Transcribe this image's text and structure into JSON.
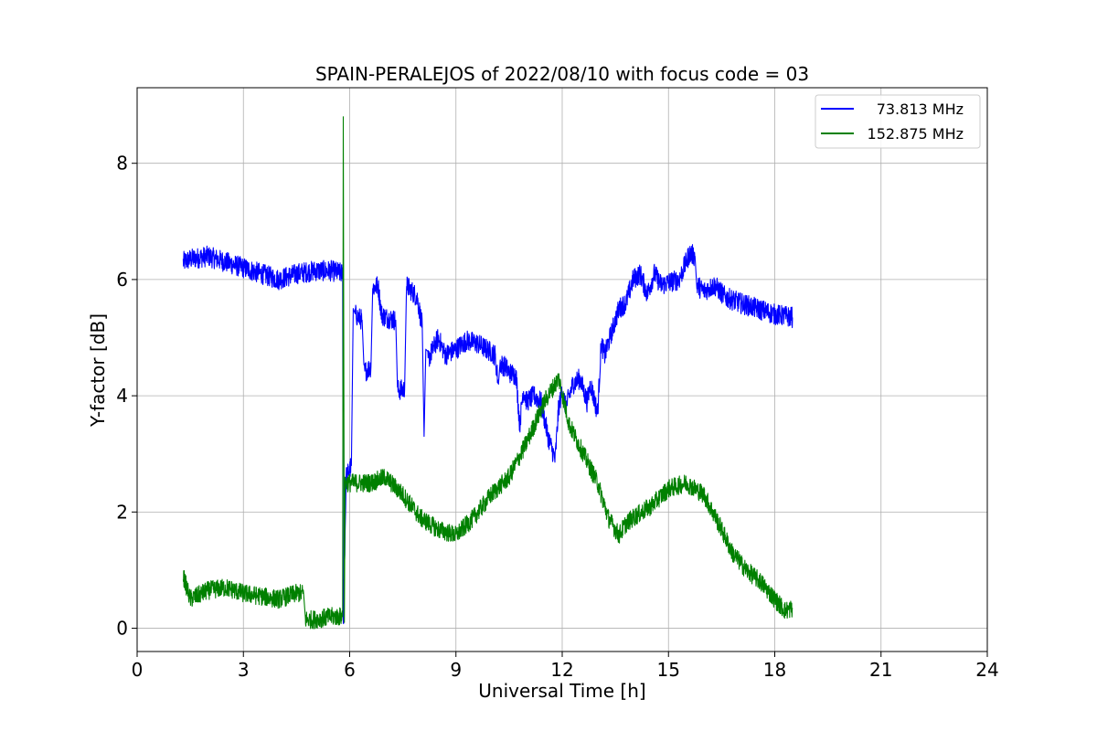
{
  "chart_data": {
    "type": "line",
    "title": "SPAIN-PERALEJOS of 2022/08/10 with focus code = 03",
    "xlabel": "Universal Time [h]",
    "ylabel": "Y-factor [dB]",
    "xlim": [
      0,
      24
    ],
    "ylim": [
      -0.4,
      9.3
    ],
    "xticks": [
      0,
      3,
      6,
      9,
      12,
      15,
      18,
      21,
      24
    ],
    "yticks": [
      0,
      2,
      4,
      6,
      8
    ],
    "grid": true,
    "legend_position": "top-right",
    "series": [
      {
        "name": "73.813 MHz",
        "color": "#0000ff",
        "noise": 0.18,
        "x": [
          1.3,
          1.5,
          2.0,
          2.5,
          3.0,
          3.5,
          4.0,
          4.5,
          5.0,
          5.5,
          5.8,
          5.82,
          5.9,
          6.05,
          6.1,
          6.15,
          6.35,
          6.4,
          6.6,
          6.65,
          6.8,
          6.9,
          7.0,
          7.3,
          7.35,
          7.55,
          7.6,
          7.9,
          8.05,
          8.1,
          8.15,
          8.2,
          8.5,
          8.7,
          9.0,
          9.3,
          9.6,
          10.0,
          10.1,
          10.2,
          10.25,
          10.4,
          10.5,
          10.7,
          10.8,
          10.9,
          11.0,
          11.2,
          11.4,
          11.6,
          11.8,
          11.9,
          12.0,
          12.1,
          12.3,
          12.5,
          12.7,
          12.8,
          13.0,
          13.1,
          13.2,
          13.4,
          13.6,
          13.8,
          14.0,
          14.2,
          14.4,
          14.6,
          14.8,
          15.0,
          15.3,
          15.5,
          15.6,
          15.75,
          15.8,
          16.0,
          16.3,
          16.6,
          17.0,
          17.5,
          18.0,
          18.5
        ],
        "y": [
          6.3,
          6.35,
          6.4,
          6.3,
          6.2,
          6.1,
          6.0,
          6.1,
          6.15,
          6.15,
          6.1,
          0.0,
          2.6,
          2.8,
          5.5,
          5.4,
          5.3,
          4.4,
          4.5,
          5.85,
          5.9,
          5.4,
          5.35,
          5.3,
          4.1,
          4.1,
          5.9,
          5.7,
          5.2,
          3.3,
          4.8,
          4.6,
          5.0,
          4.7,
          4.8,
          4.95,
          4.9,
          4.75,
          4.7,
          4.2,
          4.55,
          4.5,
          4.4,
          4.35,
          3.5,
          4.1,
          3.9,
          4.0,
          3.9,
          3.3,
          2.9,
          3.8,
          4.1,
          3.8,
          4.2,
          4.3,
          3.9,
          4.2,
          3.7,
          4.9,
          4.7,
          5.1,
          5.5,
          5.6,
          6.0,
          6.1,
          5.75,
          6.1,
          5.9,
          5.95,
          6.0,
          6.3,
          6.45,
          6.4,
          5.9,
          5.8,
          5.9,
          5.7,
          5.6,
          5.5,
          5.4,
          5.35
        ]
      },
      {
        "name": "152.875 MHz",
        "color": "#008000",
        "noise": 0.16,
        "x": [
          1.3,
          1.5,
          2.0,
          2.5,
          3.0,
          3.5,
          4.0,
          4.5,
          4.7,
          4.75,
          5.0,
          5.5,
          5.8,
          5.82,
          5.85,
          5.87,
          5.9,
          6.2,
          6.6,
          7.0,
          7.5,
          8.0,
          8.5,
          9.0,
          9.5,
          10.0,
          10.5,
          11.0,
          11.5,
          11.9,
          12.2,
          12.6,
          13.0,
          13.3,
          13.6,
          13.8,
          14.0,
          14.5,
          15.0,
          15.5,
          16.0,
          16.5,
          16.8,
          17.2,
          17.6,
          18.0,
          18.3,
          18.5
        ],
        "y": [
          0.9,
          0.5,
          0.65,
          0.7,
          0.6,
          0.55,
          0.5,
          0.6,
          0.6,
          0.15,
          0.15,
          0.2,
          0.2,
          8.8,
          0.1,
          2.6,
          2.5,
          2.5,
          2.5,
          2.6,
          2.3,
          1.9,
          1.7,
          1.6,
          1.9,
          2.3,
          2.6,
          3.2,
          3.9,
          4.3,
          3.5,
          3.0,
          2.5,
          1.9,
          1.6,
          1.8,
          1.9,
          2.1,
          2.4,
          2.5,
          2.3,
          1.7,
          1.3,
          1.0,
          0.8,
          0.5,
          0.3,
          0.35
        ]
      }
    ]
  }
}
